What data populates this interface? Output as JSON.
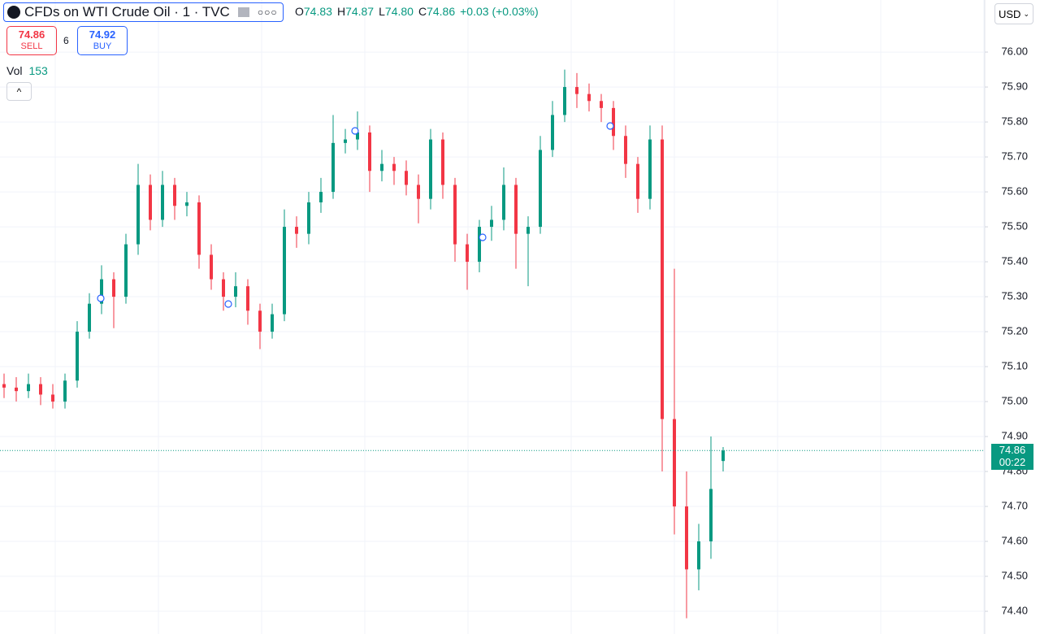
{
  "toolbar": {
    "symbol": "CFDs on WTI Crude Oil · 1 · TVC",
    "ohlc": [
      {
        "letter": "O",
        "value": "74.83"
      },
      {
        "letter": "H",
        "value": "74.87"
      },
      {
        "letter": "L",
        "value": "74.80"
      },
      {
        "letter": "C",
        "value": "74.86"
      }
    ],
    "change": "+0.03 (+0.03%)",
    "sell": {
      "price": "74.86",
      "label": "SELL"
    },
    "spread": "6",
    "buy": {
      "price": "74.92",
      "label": "BUY"
    },
    "volume": {
      "label": "Vol",
      "value": "153"
    },
    "currency": "USD",
    "countdown": "00:22"
  },
  "chart_data": {
    "type": "candlestick",
    "up_color": "#089981",
    "down_color": "#f23645",
    "grid": true,
    "open": [
      75.05,
      75.04,
      75.03,
      75.05,
      75.02,
      75.0,
      75.06,
      75.2,
      75.28,
      75.35,
      75.3,
      75.45,
      75.62,
      75.52,
      75.62,
      75.56,
      75.57,
      75.42,
      75.35,
      75.3,
      75.33,
      75.26,
      75.2,
      75.25,
      75.5,
      75.48,
      75.57,
      75.6,
      75.74,
      75.75,
      75.77,
      75.66,
      75.68,
      75.66,
      75.62,
      75.58,
      75.75,
      75.62,
      75.45,
      75.4,
      75.5,
      75.52,
      75.62,
      75.48,
      75.5,
      75.72,
      75.82,
      75.9,
      75.88,
      75.86,
      75.84,
      75.76,
      75.68,
      75.58,
      75.75,
      74.95,
      74.7,
      74.52,
      74.6,
      74.83
    ],
    "high": [
      75.08,
      75.07,
      75.08,
      75.07,
      75.05,
      75.08,
      75.23,
      75.31,
      75.39,
      75.37,
      75.48,
      75.68,
      75.65,
      75.66,
      75.64,
      75.6,
      75.59,
      75.45,
      75.37,
      75.37,
      75.35,
      75.28,
      75.28,
      75.55,
      75.53,
      75.6,
      75.64,
      75.82,
      75.78,
      75.83,
      75.79,
      75.72,
      75.7,
      75.69,
      75.65,
      75.78,
      75.77,
      75.64,
      75.48,
      75.52,
      75.56,
      75.67,
      75.64,
      75.53,
      75.76,
      75.86,
      75.95,
      75.94,
      75.91,
      75.88,
      75.86,
      75.79,
      75.7,
      75.79,
      75.79,
      75.38,
      74.8,
      74.65,
      74.9,
      74.87
    ],
    "low": [
      75.01,
      75.0,
      75.01,
      74.99,
      74.98,
      74.98,
      75.04,
      75.18,
      75.25,
      75.21,
      75.28,
      75.42,
      75.49,
      75.5,
      75.52,
      75.53,
      75.38,
      75.32,
      75.26,
      75.27,
      75.22,
      75.15,
      75.18,
      75.23,
      75.44,
      75.45,
      75.54,
      75.58,
      75.71,
      75.72,
      75.6,
      75.63,
      75.62,
      75.59,
      75.51,
      75.55,
      75.58,
      75.4,
      75.32,
      75.37,
      75.46,
      75.49,
      75.38,
      75.33,
      75.48,
      75.7,
      75.8,
      75.84,
      75.83,
      75.8,
      75.72,
      75.64,
      75.54,
      75.55,
      74.8,
      74.62,
      74.38,
      74.46,
      74.55,
      74.8
    ],
    "close": [
      75.04,
      75.03,
      75.05,
      75.02,
      75.0,
      75.06,
      75.2,
      75.28,
      75.35,
      75.3,
      75.45,
      75.62,
      75.52,
      75.62,
      75.56,
      75.57,
      75.42,
      75.35,
      75.3,
      75.33,
      75.26,
      75.2,
      75.25,
      75.5,
      75.48,
      75.57,
      75.6,
      75.74,
      75.75,
      75.77,
      75.66,
      75.68,
      75.66,
      75.62,
      75.58,
      75.75,
      75.62,
      75.45,
      75.4,
      75.5,
      75.52,
      75.62,
      75.48,
      75.5,
      75.72,
      75.82,
      75.9,
      75.88,
      75.86,
      75.84,
      75.76,
      75.68,
      75.58,
      75.75,
      74.95,
      74.7,
      74.52,
      74.6,
      74.75,
      74.86
    ],
    "ylim": [
      74.335,
      76.149
    ],
    "yticks": [
      {
        "value": 74.4,
        "label": "74.40"
      },
      {
        "value": 74.5,
        "label": "74.50"
      },
      {
        "value": 74.6,
        "label": "74.60"
      },
      {
        "value": 74.7,
        "label": "74.70"
      },
      {
        "value": 74.8,
        "label": "74.80"
      },
      {
        "value": 74.9,
        "label": "74.90"
      },
      {
        "value": 75,
        "label": "75.00"
      },
      {
        "value": 75.1,
        "label": "75.10"
      },
      {
        "value": 75.2,
        "label": "75.20"
      },
      {
        "value": 75.3,
        "label": "75.30"
      },
      {
        "value": 75.4,
        "label": "75.40"
      },
      {
        "value": 75.5,
        "label": "75.50"
      },
      {
        "value": 75.6,
        "label": "75.60"
      },
      {
        "value": 75.7,
        "label": "75.70"
      },
      {
        "value": 75.8,
        "label": "75.80"
      },
      {
        "value": 75.9,
        "label": "75.90"
      },
      {
        "value": 76,
        "label": "76.00"
      }
    ]
  }
}
